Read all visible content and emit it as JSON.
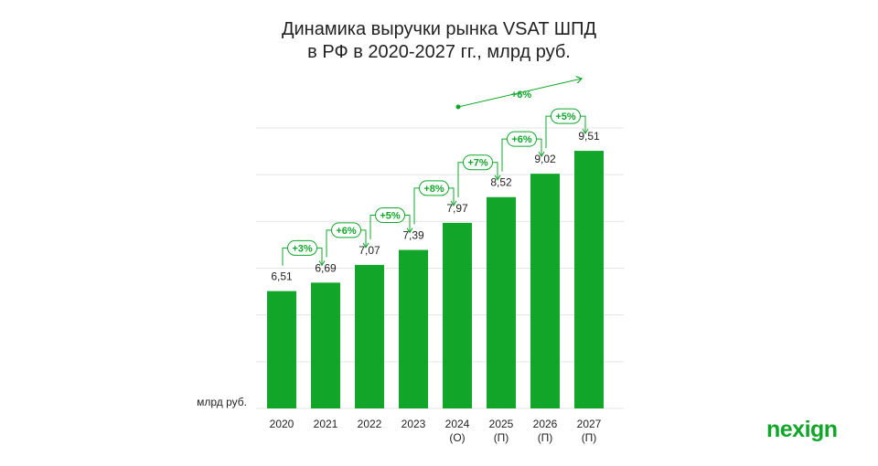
{
  "chart_data": {
    "type": "bar",
    "title_line1": "Динамика выручки рынка VSAT ШПД",
    "title_line2": "в РФ в 2020-2027 гг., млрд руб.",
    "ylabel": "млрд руб.",
    "categories": [
      "2020",
      "2021",
      "2022",
      "2023",
      "2024",
      "2025",
      "2026",
      "2027"
    ],
    "category_notes": [
      "",
      "",
      "",
      "",
      "(О)",
      "(П)",
      "(П)",
      "(П)"
    ],
    "value_labels": [
      "6,51",
      "6,69",
      "7,07",
      "7,39",
      "7,97",
      "8,52",
      "9,02",
      "9,51"
    ],
    "values": [
      6.51,
      6.69,
      7.07,
      7.39,
      7.97,
      8.52,
      9.02,
      9.51
    ],
    "growth_labels": [
      "+3%",
      "+6%",
      "+5%",
      "+8%",
      "+7%",
      "+6%",
      "+5%"
    ],
    "cagr_label": "+6%",
    "ylim": [
      0,
      10
    ],
    "grid": true,
    "bar_color": "#11a62a",
    "accent_color": "#11a62a"
  },
  "brand": {
    "logo_text": "nexign"
  }
}
